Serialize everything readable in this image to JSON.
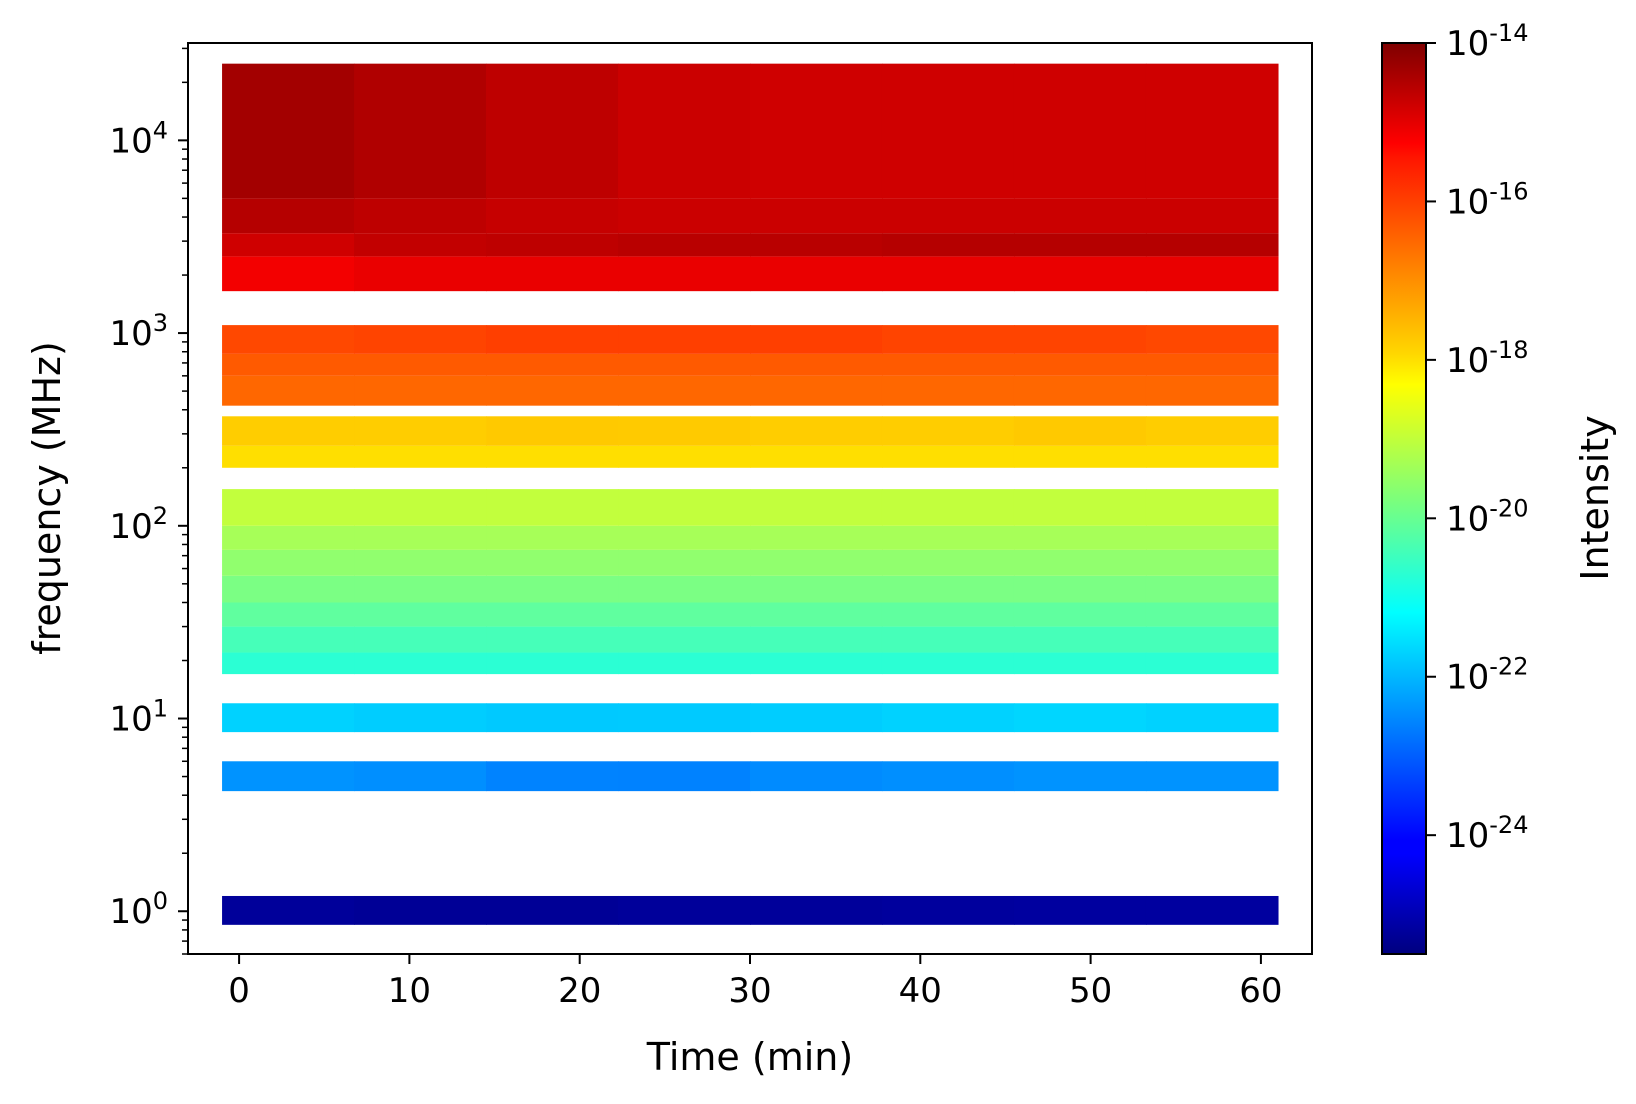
{
  "chart_data": {
    "type": "heatmap",
    "xlabel": "Time (min)",
    "ylabel": "frequency (MHz)",
    "colorbar_label": "Intensity",
    "colormap": "jet",
    "x_scale": "linear",
    "y_scale": "log",
    "xlim": [
      -3,
      63
    ],
    "ylim": [
      0.6,
      32000
    ],
    "x_ticks": [
      0,
      10,
      20,
      30,
      40,
      50,
      60
    ],
    "x_tick_labels": [
      "0",
      "10",
      "20",
      "30",
      "40",
      "50",
      "60"
    ],
    "y_ticks": [
      1,
      10,
      100,
      1000,
      10000
    ],
    "y_tick_labels": [
      {
        "base": "10",
        "exp": "0"
      },
      {
        "base": "10",
        "exp": "1"
      },
      {
        "base": "10",
        "exp": "2"
      },
      {
        "base": "10",
        "exp": "3"
      },
      {
        "base": "10",
        "exp": "4"
      }
    ],
    "colorbar_range_log10": [
      -25.5,
      -14
    ],
    "colorbar_ticks_log10": [
      -14,
      -16,
      -18,
      -20,
      -22,
      -24
    ],
    "colorbar_tick_labels": [
      {
        "base": "10",
        "exp": "-14"
      },
      {
        "base": "10",
        "exp": "-16"
      },
      {
        "base": "10",
        "exp": "-18"
      },
      {
        "base": "10",
        "exp": "-20"
      },
      {
        "base": "10",
        "exp": "-22"
      },
      {
        "base": "10",
        "exp": "-24"
      }
    ],
    "time_range": [
      -1,
      61
    ],
    "bands": [
      {
        "f_low": 0.85,
        "f_high": 1.2,
        "log_intensity": -25.2,
        "time_variation": [
          0,
          -0.05,
          -0.05,
          0,
          0,
          0.03,
          0.05,
          0.05
        ]
      },
      {
        "f_low": 4.2,
        "f_high": 6.0,
        "log_intensity": -22.4,
        "time_variation": [
          0,
          -0.05,
          -0.18,
          -0.2,
          -0.1,
          -0.05,
          0,
          0
        ]
      },
      {
        "f_low": 8.5,
        "f_high": 12.0,
        "log_intensity": -21.7,
        "time_variation": [
          0,
          -0.05,
          -0.1,
          -0.08,
          -0.05,
          0,
          0.05,
          0
        ]
      },
      {
        "f_low": 17.0,
        "f_high": 22.0,
        "log_intensity": -20.7,
        "time_variation": [
          0,
          0,
          0,
          0,
          0,
          0,
          0,
          0
        ]
      },
      {
        "f_low": 22.0,
        "f_high": 30.0,
        "log_intensity": -20.4,
        "time_variation": [
          0,
          0,
          0,
          0,
          0,
          0,
          0,
          0
        ]
      },
      {
        "f_low": 30.0,
        "f_high": 40.0,
        "log_intensity": -20.1,
        "time_variation": [
          0,
          0,
          0,
          0,
          0,
          0,
          0,
          0
        ]
      },
      {
        "f_low": 40.0,
        "f_high": 55.0,
        "log_intensity": -19.8,
        "time_variation": [
          0,
          0,
          0,
          0,
          0,
          0,
          0,
          0
        ]
      },
      {
        "f_low": 55.0,
        "f_high": 75.0,
        "log_intensity": -19.55,
        "time_variation": [
          0,
          0,
          0,
          0,
          0,
          0,
          0,
          0
        ]
      },
      {
        "f_low": 75.0,
        "f_high": 100.0,
        "log_intensity": -19.3,
        "time_variation": [
          0,
          0,
          0,
          0,
          0,
          0,
          0,
          0
        ]
      },
      {
        "f_low": 100.0,
        "f_high": 155.0,
        "log_intensity": -19.0,
        "time_variation": [
          0,
          0,
          0,
          0,
          0,
          0,
          0,
          0
        ]
      },
      {
        "f_low": 200.0,
        "f_high": 260.0,
        "log_intensity": -17.95,
        "time_variation": [
          0,
          0,
          0,
          0,
          0,
          0,
          0,
          0
        ]
      },
      {
        "f_low": 260.0,
        "f_high": 370.0,
        "log_intensity": -17.75,
        "time_variation": [
          0,
          0,
          0.05,
          0.03,
          0,
          0,
          0.05,
          0
        ]
      },
      {
        "f_low": 420.0,
        "f_high": 600.0,
        "log_intensity": -16.6,
        "time_variation": [
          0,
          0,
          0,
          0,
          0,
          0,
          0,
          0
        ]
      },
      {
        "f_low": 600.0,
        "f_high": 780.0,
        "log_intensity": -16.45,
        "time_variation": [
          0,
          0,
          0,
          0,
          0,
          0,
          0,
          0
        ]
      },
      {
        "f_low": 780.0,
        "f_high": 1100.0,
        "log_intensity": -16.25,
        "time_variation": [
          0,
          0.05,
          0.1,
          0.1,
          0.1,
          0.05,
          0.05,
          0
        ]
      },
      {
        "f_low": 1650.0,
        "f_high": 2500.0,
        "log_intensity": -15.2,
        "time_variation": [
          -0.1,
          0,
          0,
          0,
          0,
          0,
          0,
          0
        ]
      },
      {
        "f_low": 2500.0,
        "f_high": 3300.0,
        "log_intensity": -14.95,
        "time_variation": [
          0.05,
          0.2,
          0.25,
          0.3,
          0.3,
          0.35,
          0.35,
          0.35
        ]
      },
      {
        "f_low": 3300.0,
        "f_high": 5000.0,
        "log_intensity": -14.9,
        "time_variation": [
          0.3,
          0.2,
          0.1,
          0.05,
          0.05,
          0.05,
          0.05,
          0.05
        ]
      },
      {
        "f_low": 5000.0,
        "f_high": 25000.0,
        "log_intensity": -14.9,
        "time_variation": [
          0.5,
          0.35,
          0.2,
          0.05,
          0,
          0,
          0,
          0
        ]
      }
    ]
  }
}
